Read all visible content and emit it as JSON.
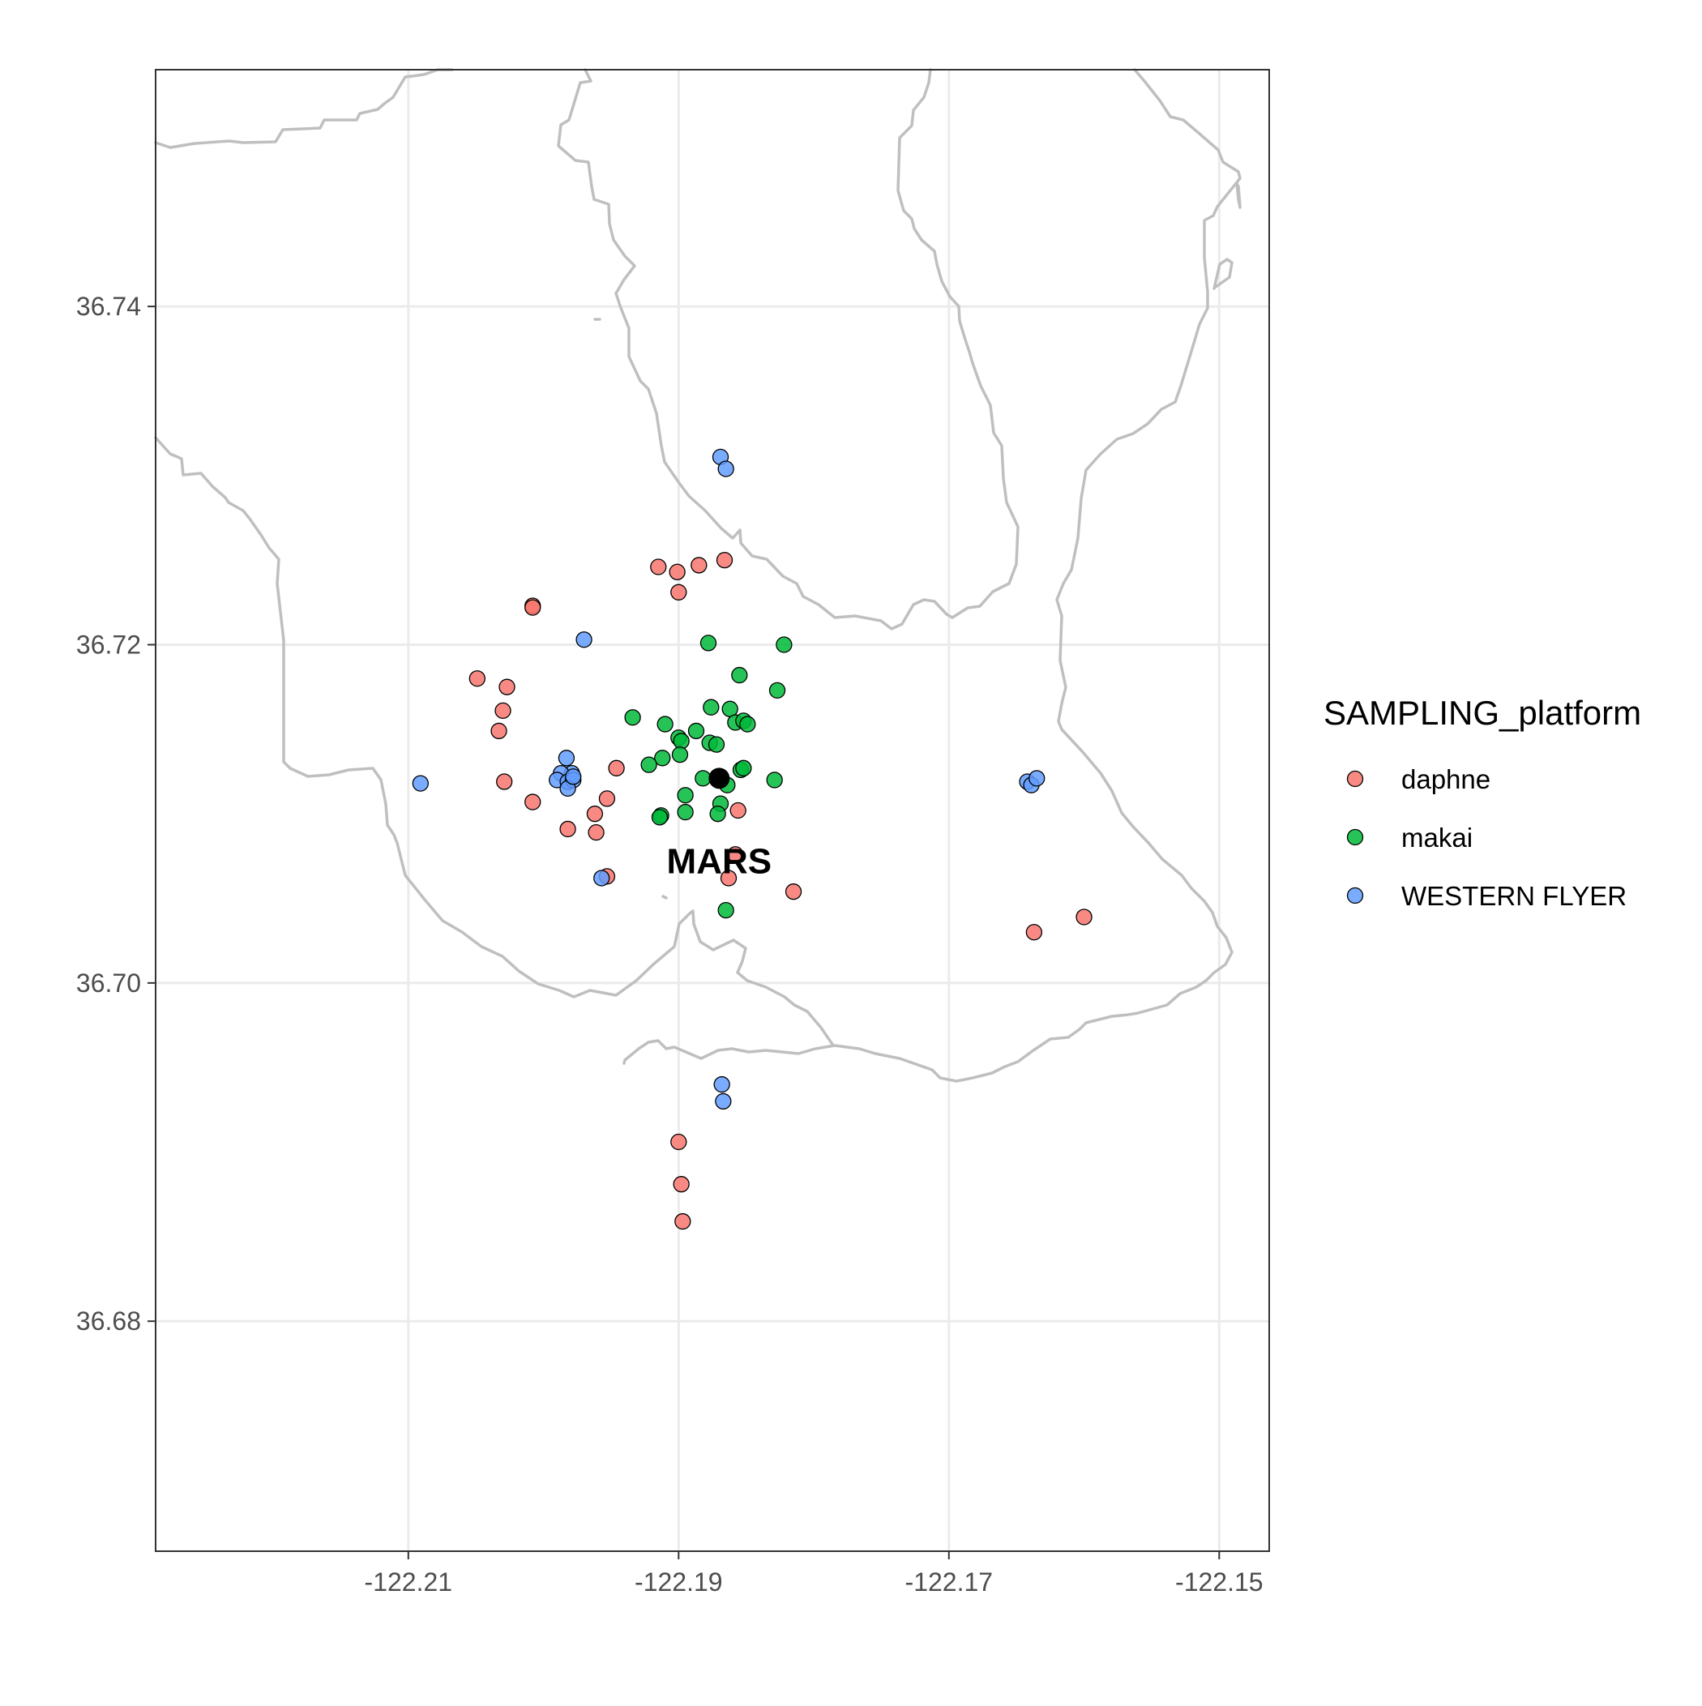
{
  "chart_data": {
    "type": "scatter",
    "title": "",
    "xlabel": "",
    "ylabel": "",
    "xlim": [
      -122.2287,
      -122.1463
    ],
    "ylim": [
      36.6664,
      36.754
    ],
    "x_ticks": [
      -122.21,
      -122.19,
      -122.17,
      -122.15
    ],
    "x_tick_labels": [
      "-122.21",
      "-122.19",
      "-122.17",
      "-122.15"
    ],
    "y_ticks": [
      36.68,
      36.7,
      36.72,
      36.74
    ],
    "y_tick_labels": [
      "36.68",
      "36.70",
      "36.72",
      "36.74"
    ],
    "grid": true,
    "legend": {
      "title": "SAMPLING_platform",
      "position": "right",
      "entries": [
        {
          "name": "daphne",
          "color": "#F8766D"
        },
        {
          "name": "makai",
          "color": "#00BA38"
        },
        {
          "name": "WESTERN FLYER",
          "color": "#619CFF"
        }
      ]
    },
    "coastline_color": "#bfbfbf",
    "series": [
      {
        "name": "daphne",
        "color": "#F8766D",
        "points": [
          [
            -122.2049,
            36.718
          ],
          [
            -122.2027,
            36.7175
          ],
          [
            -122.203,
            36.7161
          ],
          [
            -122.2033,
            36.7149
          ],
          [
            -122.2029,
            36.7119
          ],
          [
            -122.2008,
            36.7223
          ],
          [
            -122.2008,
            36.7222
          ],
          [
            -122.2008,
            36.7107
          ],
          [
            -122.1982,
            36.7091
          ],
          [
            -122.1962,
            36.71
          ],
          [
            -122.1961,
            36.7089
          ],
          [
            -122.1953,
            36.7109
          ],
          [
            -122.1946,
            36.7127
          ],
          [
            -122.1953,
            36.7063
          ],
          [
            -122.1915,
            36.7246
          ],
          [
            -122.1901,
            36.7243
          ],
          [
            -122.19,
            36.7231
          ],
          [
            -122.1885,
            36.7247
          ],
          [
            -122.1866,
            36.725
          ],
          [
            -122.1856,
            36.7102
          ],
          [
            -122.1858,
            36.7076
          ],
          [
            -122.1863,
            36.7062
          ],
          [
            -122.1815,
            36.7054
          ],
          [
            -122.1637,
            36.703
          ],
          [
            -122.16,
            36.7039
          ],
          [
            -122.19,
            36.6906
          ],
          [
            -122.1898,
            36.6881
          ],
          [
            -122.1897,
            36.6859
          ]
        ]
      },
      {
        "name": "makai",
        "color": "#00BA38",
        "points": [
          [
            -122.1878,
            36.7201
          ],
          [
            -122.1822,
            36.72
          ],
          [
            -122.1855,
            36.7182
          ],
          [
            -122.1827,
            36.7173
          ],
          [
            -122.1934,
            36.7157
          ],
          [
            -122.1876,
            36.7163
          ],
          [
            -122.1862,
            36.7162
          ],
          [
            -122.191,
            36.7153
          ],
          [
            -122.1858,
            36.7154
          ],
          [
            -122.1852,
            36.7155
          ],
          [
            -122.1849,
            36.7153
          ],
          [
            -122.1887,
            36.7149
          ],
          [
            -122.19,
            36.7145
          ],
          [
            -122.1898,
            36.7143
          ],
          [
            -122.1877,
            36.7142
          ],
          [
            -122.1872,
            36.7141
          ],
          [
            -122.1899,
            36.7135
          ],
          [
            -122.1912,
            36.7133
          ],
          [
            -122.1922,
            36.7129
          ],
          [
            -122.1854,
            36.7126
          ],
          [
            -122.1852,
            36.7127
          ],
          [
            -122.1882,
            36.7121
          ],
          [
            -122.1864,
            36.7117
          ],
          [
            -122.1829,
            36.712
          ],
          [
            -122.1895,
            36.7111
          ],
          [
            -122.1869,
            36.7106
          ],
          [
            -122.1895,
            36.7101
          ],
          [
            -122.1913,
            36.7099
          ],
          [
            -122.1914,
            36.7098
          ],
          [
            -122.1871,
            36.71
          ],
          [
            -122.1865,
            36.7043
          ]
        ]
      },
      {
        "name": "WESTERN FLYER",
        "color": "#619CFF",
        "points": [
          [
            -122.1869,
            36.7311
          ],
          [
            -122.1865,
            36.7304
          ],
          [
            -122.197,
            36.7203
          ],
          [
            -122.1983,
            36.7133
          ],
          [
            -122.1979,
            36.7124
          ],
          [
            -122.1987,
            36.7124
          ],
          [
            -122.199,
            36.712
          ],
          [
            -122.1982,
            36.7119
          ],
          [
            -122.1978,
            36.712
          ],
          [
            -122.1982,
            36.7115
          ],
          [
            -122.1978,
            36.7122
          ],
          [
            -122.2091,
            36.7118
          ],
          [
            -122.1957,
            36.7062
          ],
          [
            -122.1642,
            36.7119
          ],
          [
            -122.1639,
            36.7117
          ],
          [
            -122.1635,
            36.7121
          ],
          [
            -122.1868,
            36.694
          ],
          [
            -122.1867,
            36.693
          ]
        ]
      }
    ],
    "annotations": [
      {
        "text": "MARS",
        "x": -122.187,
        "y": 36.7072,
        "marker": {
          "x": -122.187,
          "y": 36.7121,
          "color": "#000000"
        }
      }
    ]
  }
}
